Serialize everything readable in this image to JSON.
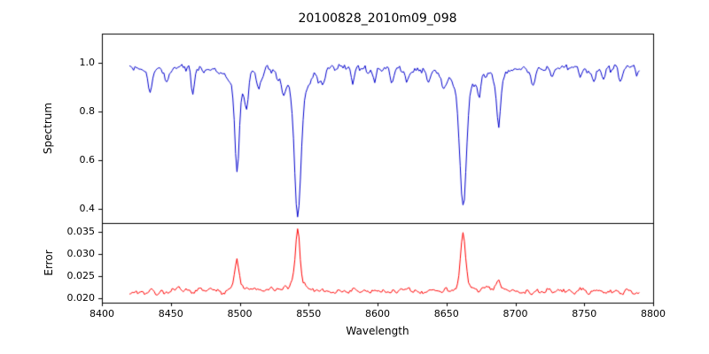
{
  "chart_data": {
    "type": "line",
    "title": "20100828_2010m09_098",
    "xlabel": "Wavelength",
    "xlim": [
      8400,
      8800
    ],
    "xticks": [
      8400,
      8450,
      8500,
      8550,
      8600,
      8650,
      8700,
      8750,
      8800
    ],
    "x_start": 8420,
    "x_end": 8790,
    "x_step": 1,
    "grid": false,
    "legend": false,
    "panels": [
      {
        "name": "spectrum",
        "ylabel": "Spectrum",
        "color": "#0000cc",
        "ylim": [
          0.34,
          1.12
        ],
        "ytick_values": [
          0.4,
          0.6,
          0.8,
          1.0
        ],
        "ytick_labels": [
          "0.4",
          "0.6",
          "0.8",
          "1.0"
        ],
        "baseline": 0.98,
        "noise_amp": 0.02,
        "absorption_lines": [
          {
            "center": 8498.0,
            "depth": 0.41,
            "sigma": 1.6
          },
          {
            "center": 8542.1,
            "depth": 0.6,
            "sigma": 2.2
          },
          {
            "center": 8662.1,
            "depth": 0.58,
            "sigma": 2.2
          },
          {
            "center": 8688.0,
            "depth": 0.23,
            "sigma": 1.3
          }
        ],
        "minor_dips": [
          [
            8435,
            0.1
          ],
          [
            8447,
            0.07
          ],
          [
            8466,
            0.1
          ],
          [
            8505,
            0.13
          ],
          [
            8514,
            0.08
          ],
          [
            8531,
            0.06
          ],
          [
            8560,
            0.05
          ],
          [
            8582,
            0.06
          ],
          [
            8598,
            0.05
          ],
          [
            8611,
            0.04
          ],
          [
            8621,
            0.06
          ],
          [
            8637,
            0.04
          ],
          [
            8648,
            0.05
          ],
          [
            8674,
            0.1
          ],
          [
            8713,
            0.06
          ],
          [
            8727,
            0.05
          ],
          [
            8747,
            0.04
          ],
          [
            8757,
            0.05
          ],
          [
            8764,
            0.06
          ],
          [
            8776,
            0.07
          ]
        ]
      },
      {
        "name": "error",
        "ylabel": "Error",
        "color": "#ff0000",
        "ylim": [
          0.019,
          0.037
        ],
        "ytick_values": [
          0.02,
          0.025,
          0.03,
          0.035
        ],
        "ytick_labels": [
          "0.020",
          "0.025",
          "0.030",
          "0.035"
        ],
        "baseline": 0.0215,
        "noise_amp": 0.0007,
        "peaks": [
          {
            "center": 8498.0,
            "height": 0.007,
            "sigma": 1.4
          },
          {
            "center": 8542.1,
            "height": 0.0135,
            "sigma": 1.6
          },
          {
            "center": 8662.1,
            "height": 0.0125,
            "sigma": 1.6
          },
          {
            "center": 8688.0,
            "height": 0.0022,
            "sigma": 1.2
          }
        ]
      }
    ]
  }
}
